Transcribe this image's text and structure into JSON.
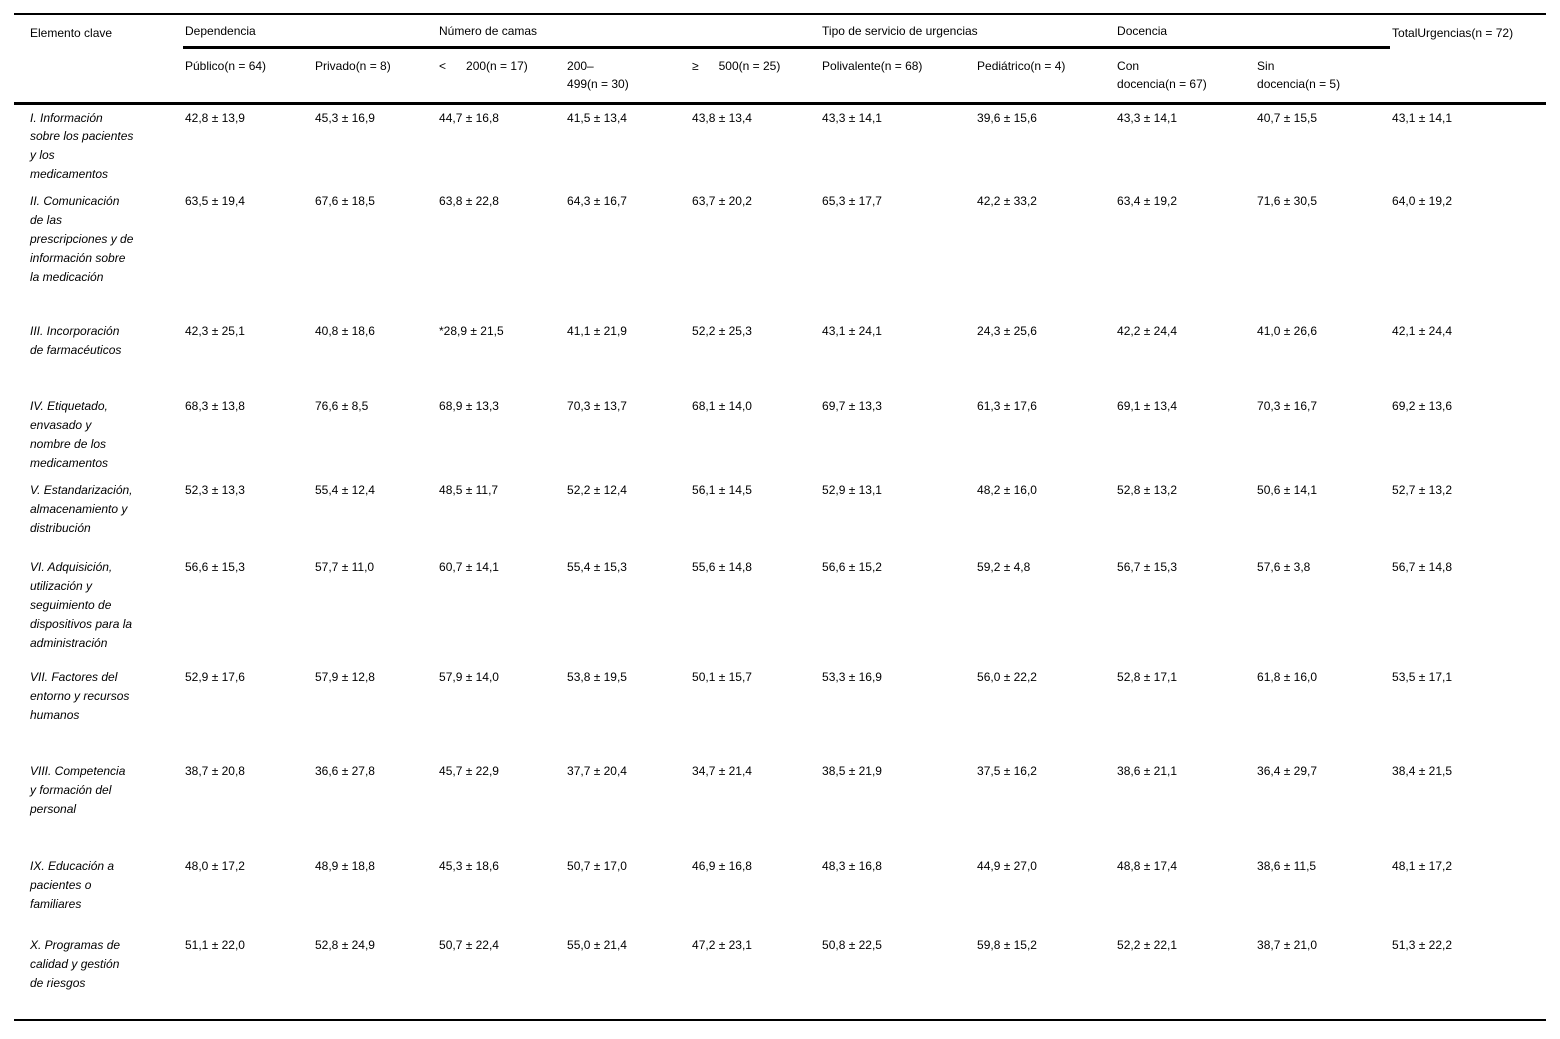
{
  "colors": {
    "ink": "#000000",
    "background": "#ffffff"
  },
  "table": {
    "corner_header": "Elemento clave",
    "groups": [
      {
        "label": "Dependencia",
        "subcols": [
          "Público(n = 64)",
          "Privado(n = 8)"
        ]
      },
      {
        "label": "Número de camas",
        "subcols": [
          "<      200(n = 17)",
          "200–\n499(n = 30)",
          "≥      500(n = 25)"
        ]
      },
      {
        "label": "Tipo de servicio de urgencias",
        "subcols": [
          "Polivalente(n = 68)",
          "Pediátrico(n = 4)"
        ]
      },
      {
        "label": "Docencia",
        "subcols": [
          "Con\ndocencia(n = 67)",
          "Sin\ndocencia(n = 5)"
        ]
      }
    ],
    "total_header": "TotalUrgencias(n = 72)",
    "rows": [
      {
        "label": "I. Información sobre los pacientes y los medicamentos",
        "values": [
          "42,8 ± 13,9",
          "45,3 ± 16,9",
          "44,7 ± 16,8",
          "41,5 ± 13,4",
          "43,8 ± 13,4",
          "43,3 ± 14,1",
          "39,6 ± 15,6",
          "43,3 ± 14,1",
          "40,7 ± 15,5",
          "43,1 ± 14,1"
        ]
      },
      {
        "label": "II. Comunicación de las prescripciones y de información sobre la medicación",
        "values": [
          "63,5 ± 19,4",
          "67,6 ± 18,5",
          "63,8 ± 22,8",
          "64,3 ± 16,7",
          "63,7 ± 20,2",
          "65,3 ± 17,7",
          "42,2 ± 33,2",
          "63,4 ± 19,2",
          "71,6 ± 30,5",
          "64,0 ± 19,2"
        ]
      },
      {
        "label": "III. Incorporación de farmacéuticos",
        "values": [
          "42,3 ± 25,1",
          "40,8 ± 18,6",
          "*28,9 ± 21,5",
          "41,1 ± 21,9",
          "52,2 ± 25,3",
          "43,1 ± 24,1",
          "24,3 ± 25,6",
          "42,2 ± 24,4",
          "41,0 ± 26,6",
          "42,1 ± 24,4"
        ]
      },
      {
        "label": "IV. Etiquetado, envasado y nombre de los medicamentos",
        "values": [
          "68,3 ± 13,8",
          "76,6 ± 8,5",
          "68,9 ± 13,3",
          "70,3 ± 13,7",
          "68,1 ± 14,0",
          "69,7 ± 13,3",
          "61,3 ± 17,6",
          "69,1 ± 13,4",
          "70,3 ± 16,7",
          "69,2 ± 13,6"
        ]
      },
      {
        "label": "V. Estandarización, almacenamiento y distribución",
        "values": [
          "52,3 ± 13,3",
          "55,4 ± 12,4",
          "48,5 ± 11,7",
          "52,2 ± 12,4",
          "56,1 ± 14,5",
          "52,9 ± 13,1",
          "48,2 ± 16,0",
          "52,8 ± 13,2",
          "50,6 ± 14,1",
          "52,7 ± 13,2"
        ]
      },
      {
        "label": "VI. Adquisición, utilización y seguimiento de dispositivos para la administración",
        "values": [
          "56,6 ± 15,3",
          "57,7 ± 11,0",
          "60,7 ± 14,1",
          "55,4 ± 15,3",
          "55,6 ± 14,8",
          "56,6 ± 15,2",
          "59,2 ± 4,8",
          "56,7 ± 15,3",
          "57,6 ± 3,8",
          "56,7 ± 14,8"
        ]
      },
      {
        "label": "VII. Factores del entorno y recursos humanos",
        "values": [
          "52,9 ± 17,6",
          "57,9 ± 12,8",
          "57,9 ± 14,0",
          "53,8 ± 19,5",
          "50,1 ± 15,7",
          "53,3 ± 16,9",
          "56,0 ± 22,2",
          "52,8 ± 17,1",
          "61,8 ± 16,0",
          "53,5 ± 17,1"
        ]
      },
      {
        "label": "VIII. Competencia y formación del personal",
        "values": [
          "38,7 ± 20,8",
          "36,6 ± 27,8",
          "45,7 ± 22,9",
          "37,7 ± 20,4",
          "34,7 ± 21,4",
          "38,5 ± 21,9",
          "37,5 ± 16,2",
          "38,6 ± 21,1",
          "36,4 ± 29,7",
          "38,4 ± 21,5"
        ]
      },
      {
        "label": "IX. Educación a pacientes o familiares",
        "values": [
          "48,0 ± 17,2",
          "48,9 ± 18,8",
          "45,3 ± 18,6",
          "50,7 ± 17,0",
          "46,9 ± 16,8",
          "48,3 ± 16,8",
          "44,9 ± 27,0",
          "48,8 ± 17,4",
          "38,6 ± 11,5",
          "48,1 ± 17,2"
        ]
      },
      {
        "label": "X. Programas de calidad y gestión de riesgos",
        "values": [
          "51,1 ± 22,0",
          "52,8 ± 24,9",
          "50,7 ± 22,4",
          "55,0 ± 21,4",
          "47,2 ± 23,1",
          "50,8 ± 22,5",
          "59,8 ± 15,2",
          "52,2 ± 22,1",
          "38,7 ± 21,0",
          "51,3 ± 22,2"
        ]
      }
    ]
  }
}
